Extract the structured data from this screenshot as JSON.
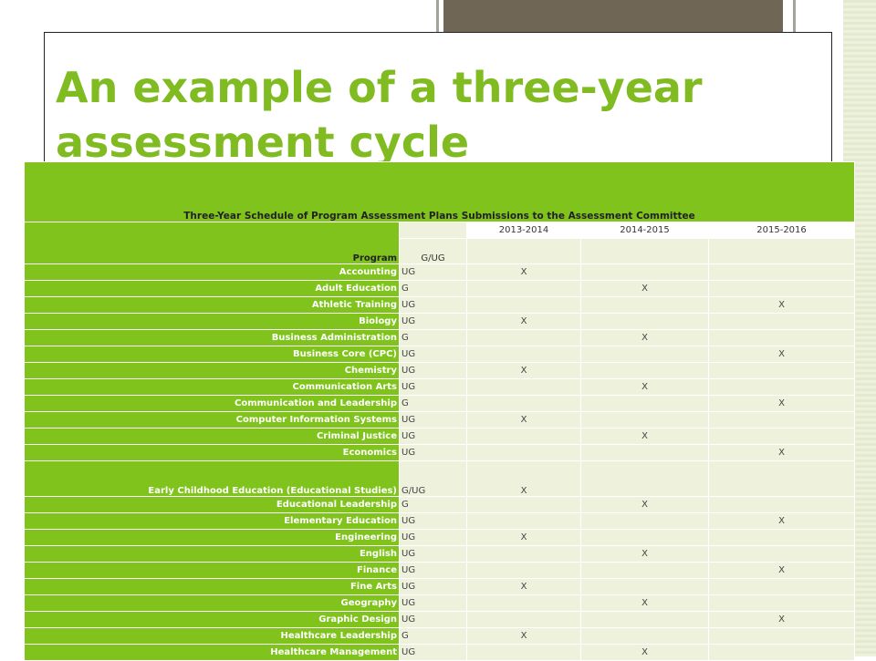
{
  "slide": {
    "title": "An example of a three-year assessment cycle"
  },
  "table": {
    "caption": "Three-Year Schedule of Program Assessment Plans Submissions to the Assessment Committee",
    "years": [
      "2013-2014",
      "2014-2015",
      "2015-2016"
    ],
    "program_header": "Program",
    "level_header": "G/UG",
    "rows": [
      {
        "program": "Accounting",
        "level": "UG",
        "marks": [
          "X",
          "",
          ""
        ]
      },
      {
        "program": "Adult Education",
        "level": "G",
        "marks": [
          "",
          "X",
          ""
        ]
      },
      {
        "program": "Athletic Training",
        "level": "UG",
        "marks": [
          "",
          "",
          "X"
        ]
      },
      {
        "program": "Biology",
        "level": "UG",
        "marks": [
          "X",
          "",
          ""
        ]
      },
      {
        "program": "Business Administration",
        "level": "G",
        "marks": [
          "",
          "X",
          ""
        ]
      },
      {
        "program": "Business Core (CPC)",
        "level": "UG",
        "marks": [
          "",
          "",
          "X"
        ]
      },
      {
        "program": "Chemistry",
        "level": "UG",
        "marks": [
          "X",
          "",
          ""
        ]
      },
      {
        "program": "Communication Arts",
        "level": "UG",
        "marks": [
          "",
          "X",
          ""
        ]
      },
      {
        "program": "Communication and Leadership",
        "level": "G",
        "marks": [
          "",
          "",
          "X"
        ]
      },
      {
        "program": "Computer Information Systems",
        "level": "UG",
        "marks": [
          "X",
          "",
          ""
        ]
      },
      {
        "program": "Criminal Justice",
        "level": "UG",
        "marks": [
          "",
          "X",
          ""
        ]
      },
      {
        "program": "Economics",
        "level": "UG",
        "marks": [
          "",
          "",
          "X"
        ]
      },
      {
        "program": "Early Childhood Education (Educational Studies)",
        "level": "G/UG",
        "marks": [
          "X",
          "",
          ""
        ],
        "tall": true
      },
      {
        "program": "Educational Leadership",
        "level": "G",
        "marks": [
          "",
          "X",
          ""
        ]
      },
      {
        "program": "Elementary Education",
        "level": "UG",
        "marks": [
          "",
          "",
          "X"
        ]
      },
      {
        "program": "Engineering",
        "level": "UG",
        "marks": [
          "X",
          "",
          ""
        ]
      },
      {
        "program": "English",
        "level": "UG",
        "marks": [
          "",
          "X",
          ""
        ]
      },
      {
        "program": "Finance",
        "level": "UG",
        "marks": [
          "",
          "",
          "X"
        ]
      },
      {
        "program": "Fine Arts",
        "level": "UG",
        "marks": [
          "X",
          "",
          ""
        ]
      },
      {
        "program": "Geography",
        "level": "UG",
        "marks": [
          "",
          "X",
          ""
        ]
      },
      {
        "program": "Graphic Design",
        "level": "UG",
        "marks": [
          "",
          "",
          "X"
        ]
      },
      {
        "program": "Healthcare Leadership",
        "level": "G",
        "marks": [
          "X",
          "",
          ""
        ]
      },
      {
        "program": "Healthcare Management",
        "level": "UG",
        "marks": [
          "",
          "X",
          ""
        ]
      }
    ]
  }
}
